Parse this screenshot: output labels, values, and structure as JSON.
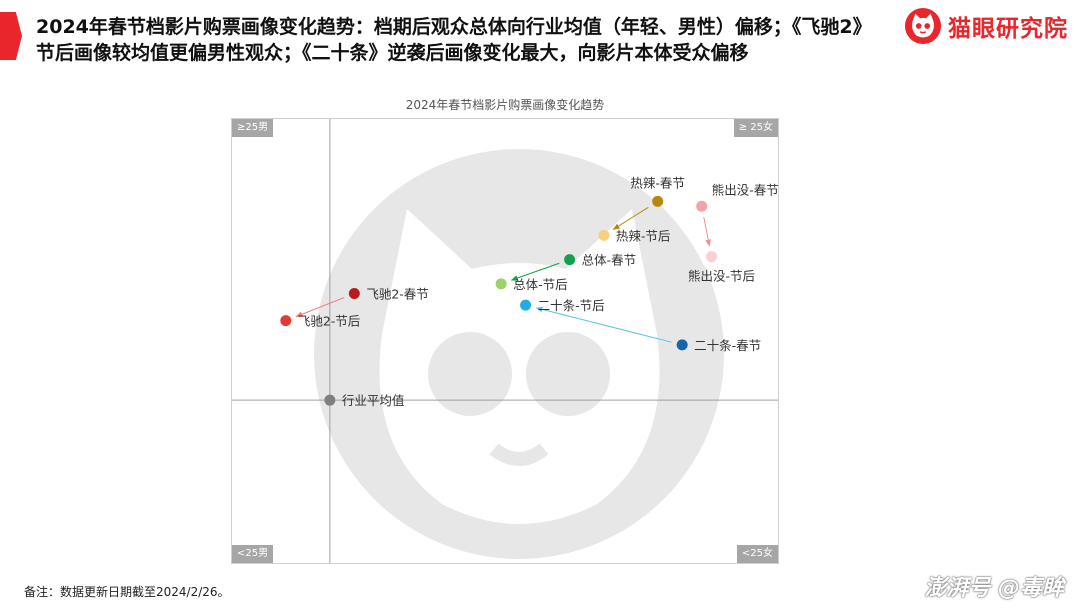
{
  "header": {
    "headline": "2024年春节档影片购票画像变化趋势：档期后观众总体向行业均值（年轻、男性）偏移；《飞驰2》节后画像较均值更偏男性观众；《二十条》逆袭后画像变化最大，向影片本体受众偏移"
  },
  "brand": {
    "name": "猫眼研究院",
    "color": "#e8262b"
  },
  "chart_data": {
    "type": "scatter",
    "title": "2024年春节档影片购票画像变化趋势",
    "xlabel": "",
    "ylabel": "",
    "quadrant_labels": {
      "top_left": "≥25男",
      "top_right": "≥ 25女",
      "bottom_left": "<25男",
      "bottom_right": "<25女"
    },
    "xlim": [
      -1,
      4.6
    ],
    "ylim": [
      -1.7,
      2.9
    ],
    "grid": false,
    "legend": "none",
    "points": [
      {
        "label": "热辣-春节",
        "x": 3.35,
        "y": 2.05,
        "color": "#b8860b",
        "label_pos": "top"
      },
      {
        "label": "热辣-节后",
        "x": 2.8,
        "y": 1.7,
        "color": "#f3d27b",
        "label_pos": "right"
      },
      {
        "label": "熊出没-春节",
        "x": 3.8,
        "y": 2.0,
        "color": "#f4a3a8",
        "label_pos": "right-top"
      },
      {
        "label": "熊出没-节后",
        "x": 3.9,
        "y": 1.48,
        "color": "#f9cfd2",
        "label_pos": "bottom"
      },
      {
        "label": "总体-春节",
        "x": 2.45,
        "y": 1.45,
        "color": "#12a14b",
        "label_pos": "right"
      },
      {
        "label": "总体-节后",
        "x": 1.75,
        "y": 1.2,
        "color": "#9ad36a",
        "label_pos": "right"
      },
      {
        "label": "二十条-节后",
        "x": 2.0,
        "y": 0.98,
        "color": "#1eaee4",
        "label_pos": "right"
      },
      {
        "label": "二十条-春节",
        "x": 3.6,
        "y": 0.57,
        "color": "#1565b0",
        "label_pos": "right"
      },
      {
        "label": "飞驰2-春节",
        "x": 0.25,
        "y": 1.1,
        "color": "#b71c1c",
        "label_pos": "right"
      },
      {
        "label": "飞驰2-节后",
        "x": -0.45,
        "y": 0.82,
        "color": "#e53935",
        "label_pos": "right"
      },
      {
        "label": "行业平均值",
        "x": 0,
        "y": 0,
        "color": "#7f7f7f",
        "label_pos": "right"
      }
    ],
    "arrows": [
      {
        "from": "热辣-春节",
        "to": "热辣-节后",
        "color": "#b8860b"
      },
      {
        "from": "熊出没-春节",
        "to": "熊出没-节后",
        "color": "#f28b93"
      },
      {
        "from": "总体-春节",
        "to": "总体-节后",
        "color": "#12a14b"
      },
      {
        "from": "二十条-春节",
        "to": "二十条-节后",
        "color": "#5bc2ea"
      },
      {
        "from": "飞驰2-春节",
        "to": "飞驰2-节后",
        "color": "#ef7b78"
      }
    ]
  },
  "footer": {
    "note": "备注：数据更新日期截至2024/2/26。",
    "watermark": "澎湃号 @毒眸"
  }
}
